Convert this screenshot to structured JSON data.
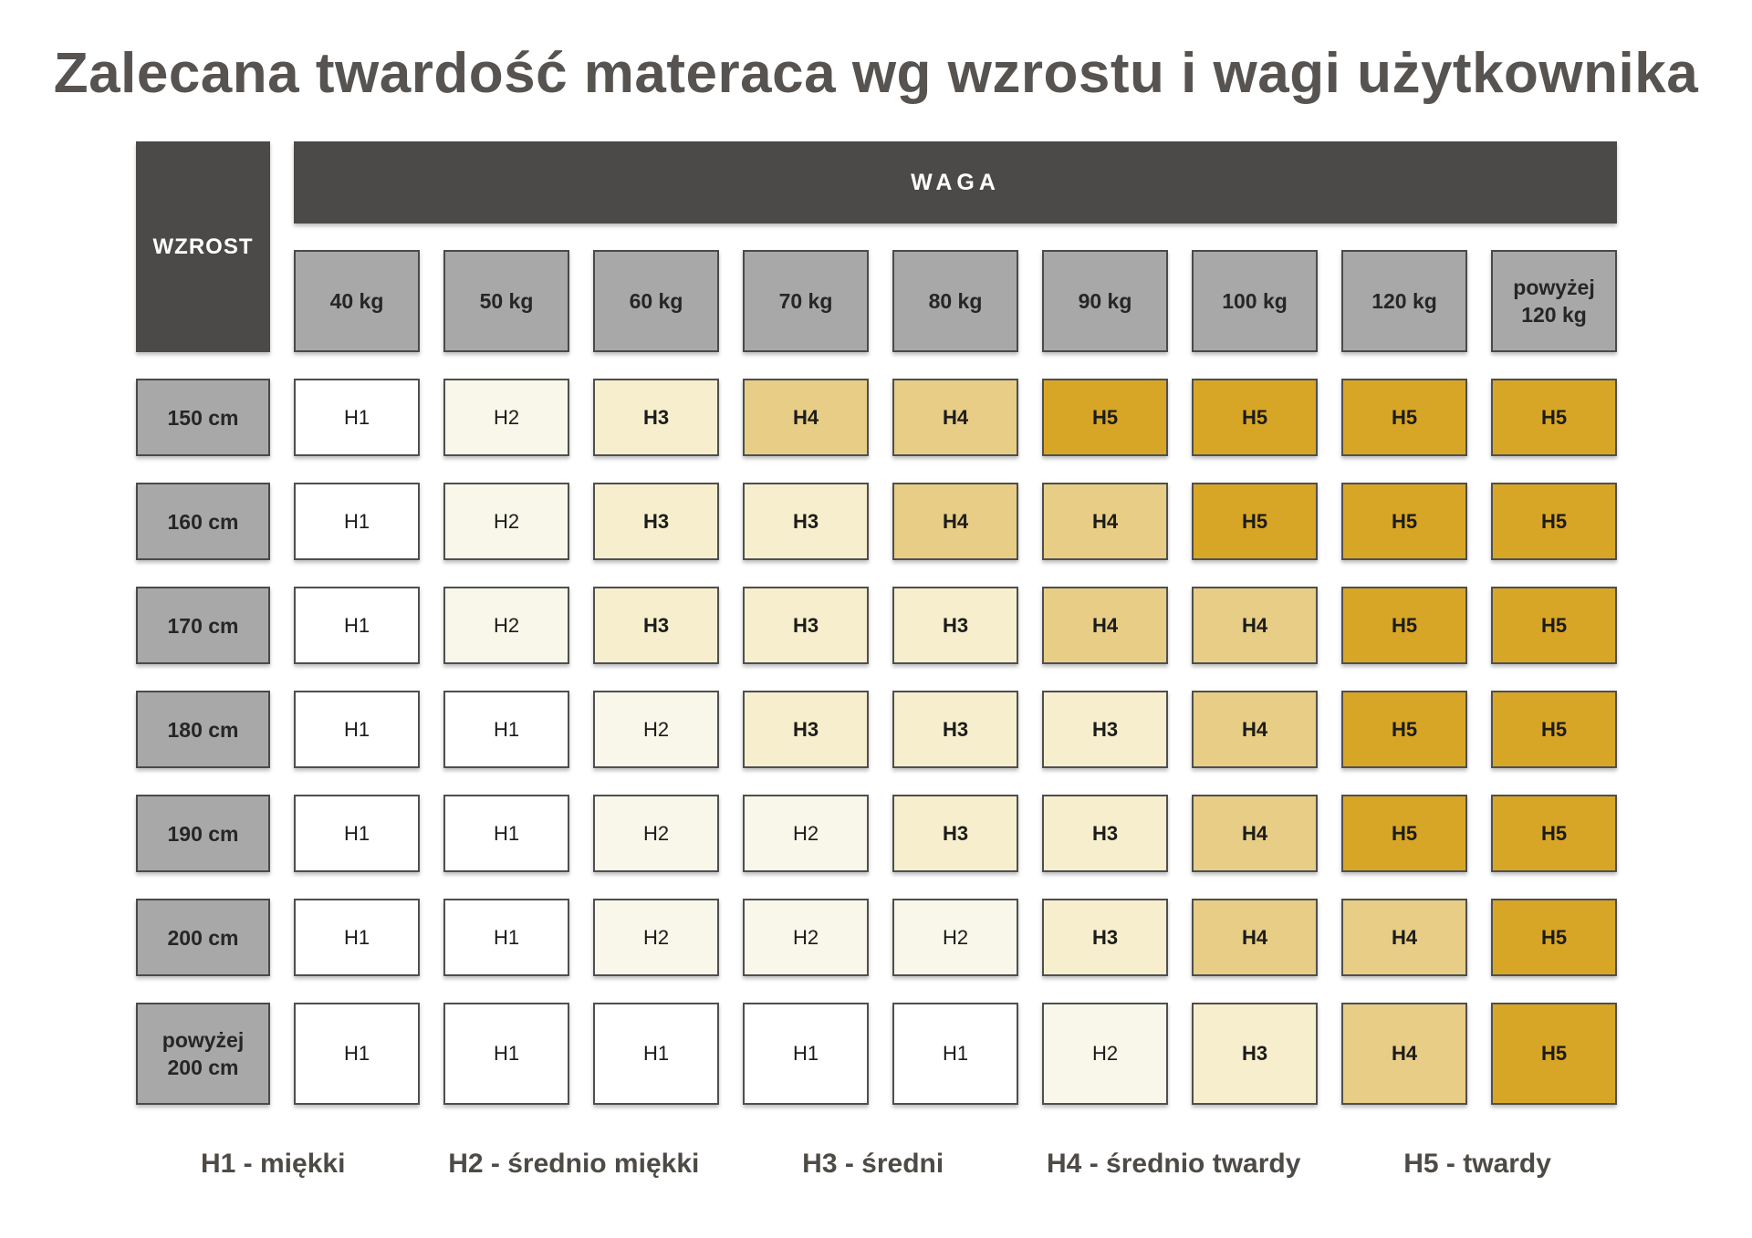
{
  "chart_data": {
    "type": "heatmap",
    "title": "Zalecana twardość materaca wg wzrostu i wagi użytkownika",
    "x_label": "WAGA",
    "y_label": "WZROST",
    "x_categories": [
      "40 kg",
      "50 kg",
      "60 kg",
      "70 kg",
      "80 kg",
      "90 kg",
      "100 kg",
      "120 kg",
      "powyżej 120 kg"
    ],
    "y_categories": [
      "150 cm",
      "160 cm",
      "170 cm",
      "180 cm",
      "190 cm",
      "200 cm",
      "powyżej 200 cm"
    ],
    "values": [
      [
        "H1",
        "H2",
        "H3",
        "H4",
        "H4",
        "H5",
        "H5",
        "H5",
        "H5"
      ],
      [
        "H1",
        "H2",
        "H3",
        "H3",
        "H4",
        "H4",
        "H5",
        "H5",
        "H5"
      ],
      [
        "H1",
        "H2",
        "H3",
        "H3",
        "H3",
        "H4",
        "H4",
        "H5",
        "H5"
      ],
      [
        "H1",
        "H1",
        "H2",
        "H3",
        "H3",
        "H3",
        "H4",
        "H5",
        "H5"
      ],
      [
        "H1",
        "H1",
        "H2",
        "H2",
        "H3",
        "H3",
        "H4",
        "H5",
        "H5"
      ],
      [
        "H1",
        "H1",
        "H2",
        "H2",
        "H2",
        "H3",
        "H4",
        "H4",
        "H5"
      ],
      [
        "H1",
        "H1",
        "H1",
        "H1",
        "H1",
        "H2",
        "H3",
        "H4",
        "H5"
      ]
    ],
    "legend": [
      "H1 - miękki",
      "H2 - średnio miękki",
      "H3 - średni",
      "H4 - średnio twardy",
      "H5 - twardy"
    ],
    "value_colors": {
      "H1": "#ffffff",
      "H2": "#f8f7ea",
      "H3": "#f6eecd",
      "H4": "#e7cd85",
      "H5": "#d8a627"
    },
    "layout": {
      "grid": "off",
      "legend_position": "bottom",
      "header_dark_color": "#4c4a48",
      "header_gray_color": "#a8a8a8",
      "cell_border_color": "#4f4f4f",
      "title_color": "#575350"
    }
  }
}
